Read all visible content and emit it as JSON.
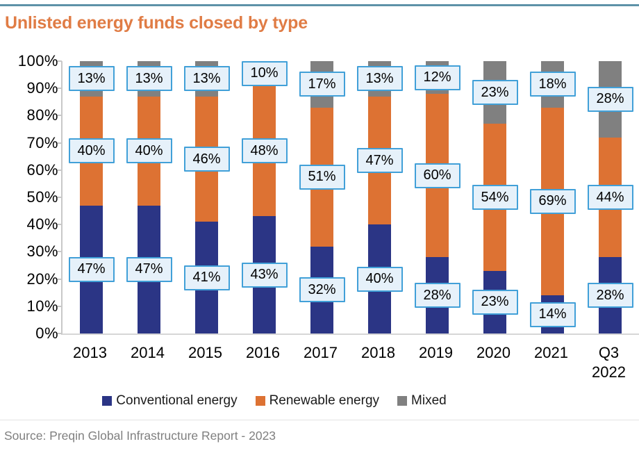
{
  "title": "Unlisted energy funds closed by type",
  "source": "Source: Preqin Global Infrastructure Report - 2023",
  "colors": {
    "title": "#e07c45",
    "top_rule": "#5d92a8",
    "conventional": "#2b3585",
    "renewable": "#dd7233",
    "mixed": "#808080",
    "label_fill": "#e6f1fa",
    "label_border": "#41a0d8",
    "source_text": "#7f7f7f"
  },
  "chart_data": {
    "type": "bar",
    "stacked": true,
    "percent": true,
    "title": "Unlisted energy funds closed by type",
    "categories": [
      "2013",
      "2014",
      "2015",
      "2016",
      "2017",
      "2018",
      "2019",
      "2020",
      "2021",
      "Q3 2022"
    ],
    "series": [
      {
        "name": "Conventional energy",
        "color_key": "conventional",
        "values": [
          47,
          47,
          41,
          43,
          32,
          40,
          28,
          23,
          14,
          28
        ]
      },
      {
        "name": "Renewable energy",
        "color_key": "renewable",
        "values": [
          40,
          40,
          46,
          48,
          51,
          47,
          60,
          54,
          69,
          44
        ]
      },
      {
        "name": "Mixed",
        "color_key": "mixed",
        "values": [
          13,
          13,
          13,
          10,
          17,
          13,
          12,
          23,
          18,
          28
        ]
      }
    ],
    "ylim": [
      0,
      100
    ],
    "ytick_step": 10,
    "ytick_labels": [
      "0%",
      "10%",
      "20%",
      "30%",
      "40%",
      "50%",
      "60%",
      "70%",
      "80%",
      "90%",
      "100%"
    ],
    "data_labels": true,
    "data_label_suffix": "%",
    "legend_position": "bottom",
    "grid": false
  }
}
